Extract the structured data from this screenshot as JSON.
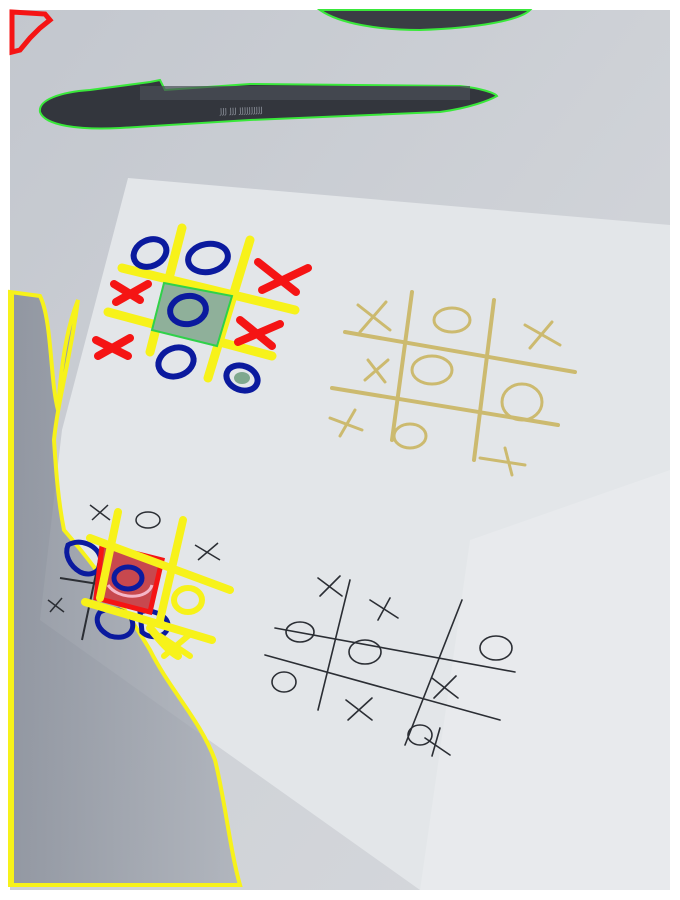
{
  "photo": {
    "subject": "tic-tac-toe boards on paper with detection overlays",
    "pen_imprint": "JJJ JJJ JJJJJJJJJJ"
  },
  "overlay_colors": {
    "pen_outline": "#39e83a",
    "grid_lines": "#f7f21a",
    "x_marks": "#f51414",
    "o_marks": "#0b1a9e",
    "cell_highlight": "#2fd14a",
    "shadow_outline": "#f7f21a",
    "background": "#c9cdd3",
    "paper": "#e4e7ea"
  }
}
